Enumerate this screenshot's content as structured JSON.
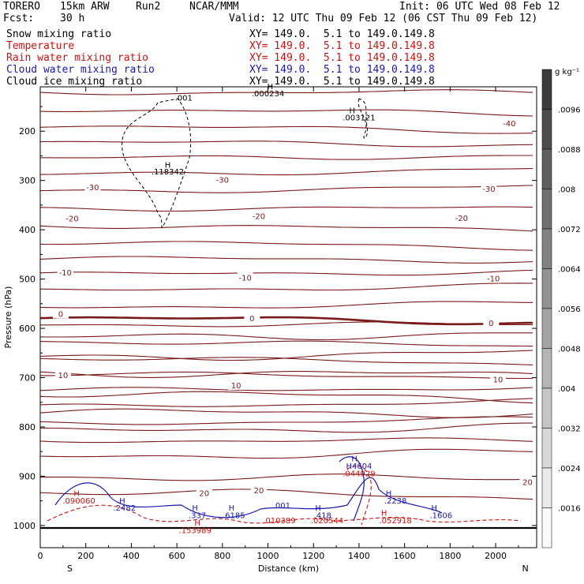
{
  "header": {
    "model": "TORERO",
    "resolution": "15km ARW",
    "run": "Run2",
    "org": "NCAR/MMM",
    "init": "Init: 06 UTC Wed 08 Feb 12",
    "fcst_label": "Fcst:",
    "fcst_value": "30 h",
    "valid": "Valid: 12 UTC Thu 09 Feb 12 (06 CST Thu 09 Feb 12)"
  },
  "legend": [
    {
      "label": "Snow mixing ratio",
      "xy": "",
      "color": "#000000"
    },
    {
      "label": "Temperature",
      "xy": "XY= 149.0.  5.1 to 149.0.149.8",
      "color": "#cc1111"
    },
    {
      "label": "Rain water mixing ratio",
      "xy": "XY= 149.0.  5.1 to 149.0.149.8",
      "color": "#cc1111"
    },
    {
      "label": "Cloud water mixing ratio",
      "xy": "XY= 149.0.  5.1 to 149.0.149.8",
      "color": "#1a1ab0"
    },
    {
      "label": "Cloud ice mixing ratio",
      "xy": "XY= 149.0.  5.1 to 149.0.149.8",
      "color": "#000000"
    }
  ],
  "xy_snow": "XY= 149.0.  5.1 to 149.0.149.8",
  "chart_data": {
    "type": "contour",
    "xlabel": "Distance (km)",
    "ylabel": "Pressure (hPa)",
    "x_ticks": [
      0,
      200,
      400,
      600,
      800,
      1000,
      1200,
      1400,
      1600,
      1800,
      2000
    ],
    "y_ticks": [
      200,
      300,
      400,
      500,
      600,
      700,
      800,
      900,
      1000
    ],
    "xlim": [
      0,
      2180
    ],
    "ylim": [
      1045,
      110
    ],
    "x_end_labels": {
      "left": "S",
      "right": "N"
    },
    "colorbar": {
      "unit": "g kg⁻¹",
      "ticks": [
        ".0096",
        ".0088",
        ".008",
        ".0072",
        ".0064",
        ".0056",
        ".0048",
        ".004",
        ".0032",
        ".0024",
        ".0016"
      ]
    },
    "temperature_labels": [
      {
        "text": "-40",
        "x": 2060,
        "p": 185
      },
      {
        "text": "-30",
        "x": 230,
        "p": 315
      },
      {
        "text": "-30",
        "x": 800,
        "p": 300
      },
      {
        "text": "-30",
        "x": 1970,
        "p": 318
      },
      {
        "text": "-20",
        "x": 140,
        "p": 378
      },
      {
        "text": "-20",
        "x": 960,
        "p": 373
      },
      {
        "text": "-20",
        "x": 1850,
        "p": 377
      },
      {
        "text": "-10",
        "x": 110,
        "p": 488
      },
      {
        "text": "-10",
        "x": 900,
        "p": 498
      },
      {
        "text": "-10",
        "x": 1990,
        "p": 500
      },
      {
        "text": "0",
        "x": 90,
        "p": 572
      },
      {
        "text": "0",
        "x": 930,
        "p": 581
      },
      {
        "text": "0",
        "x": 1980,
        "p": 590
      },
      {
        "text": "10",
        "x": 100,
        "p": 696
      },
      {
        "text": "10",
        "x": 860,
        "p": 717
      },
      {
        "text": "10",
        "x": 2010,
        "p": 705
      },
      {
        "text": "20",
        "x": 720,
        "p": 935
      },
      {
        "text": "20",
        "x": 960,
        "p": 930
      },
      {
        "text": "20",
        "x": 2140,
        "p": 913
      }
    ],
    "extrema_labels": [
      {
        "text": ".001",
        "x": 630,
        "p": 138,
        "color": "#000000"
      },
      {
        "text": "H",
        "x": 1010,
        "p": 115,
        "color": "#000000"
      },
      {
        "text": ".000234",
        "x": 1000,
        "p": 129,
        "color": "#000000"
      },
      {
        "text": "H",
        "x": 1370,
        "p": 164,
        "color": "#000000"
      },
      {
        "text": ".003121",
        "x": 1400,
        "p": 178,
        "color": "#000000"
      },
      {
        "text": "H",
        "x": 560,
        "p": 274,
        "color": "#000000"
      },
      {
        "text": ".118342",
        "x": 560,
        "p": 288,
        "color": "#000000"
      },
      {
        "text": "H",
        "x": 160,
        "p": 940,
        "color": "#cc1111"
      },
      {
        "text": ".090060",
        "x": 170,
        "p": 955,
        "color": "#cc1111"
      },
      {
        "text": "H",
        "x": 360,
        "p": 955,
        "color": "#1a1ab0"
      },
      {
        "text": ".2482",
        "x": 370,
        "p": 970,
        "color": "#1a1ab0"
      },
      {
        "text": "H",
        "x": 680,
        "p": 970,
        "color": "#1a1ab0"
      },
      {
        "text": ".337",
        "x": 690,
        "p": 985,
        "color": "#1a1ab0"
      },
      {
        "text": "H",
        "x": 690,
        "p": 1000,
        "color": "#cc1111"
      },
      {
        "text": ".153989",
        "x": 680,
        "p": 1015,
        "color": "#cc1111"
      },
      {
        "text": "H",
        "x": 840,
        "p": 970,
        "color": "#1a1ab0"
      },
      {
        "text": ".6185",
        "x": 850,
        "p": 985,
        "color": "#1a1ab0"
      },
      {
        "text": ".001",
        "x": 1060,
        "p": 965,
        "color": "#1a1ab0"
      },
      {
        "text": ".010389",
        "x": 1050,
        "p": 995,
        "color": "#cc1111"
      },
      {
        "text": "H",
        "x": 1220,
        "p": 970,
        "color": "#1a1ab0"
      },
      {
        "text": ".418",
        "x": 1240,
        "p": 985,
        "color": "#1a1ab0"
      },
      {
        "text": ".020544",
        "x": 1260,
        "p": 995,
        "color": "#cc1111"
      },
      {
        "text": "H",
        "x": 1380,
        "p": 870,
        "color": "#1a1ab0"
      },
      {
        "text": "H4604",
        "x": 1400,
        "p": 885,
        "color": "#1a1ab0"
      },
      {
        "text": ".044929",
        "x": 1400,
        "p": 900,
        "color": "#cc1111"
      },
      {
        "text": "H",
        "x": 1530,
        "p": 940,
        "color": "#1a1ab0"
      },
      {
        "text": ".2238",
        "x": 1560,
        "p": 955,
        "color": "#1a1ab0"
      },
      {
        "text": "H",
        "x": 1510,
        "p": 980,
        "color": "#cc1111"
      },
      {
        "text": ".052918",
        "x": 1560,
        "p": 995,
        "color": "#cc1111"
      },
      {
        "text": "H",
        "x": 1730,
        "p": 970,
        "color": "#1a1ab0"
      },
      {
        "text": ".1606",
        "x": 1760,
        "p": 985,
        "color": "#1a1ab0"
      }
    ]
  }
}
